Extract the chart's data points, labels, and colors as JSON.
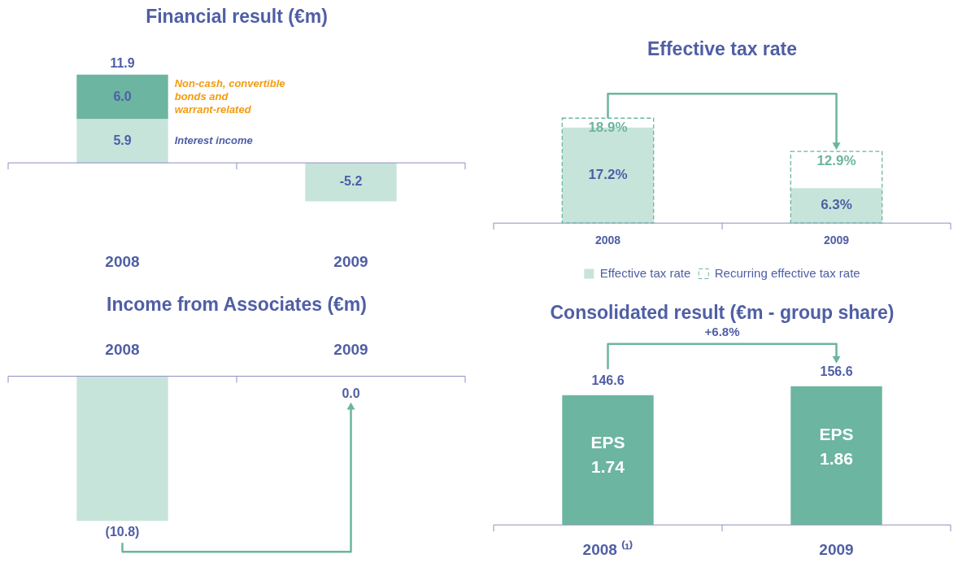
{
  "chart_data": [
    {
      "type": "bar",
      "title": "Financial result (€m)",
      "categories": [
        "2008",
        "2009"
      ],
      "stacked": true,
      "series": [
        {
          "name": "Interest income",
          "color": "#c7e4db",
          "values": [
            5.9,
            -5.2
          ],
          "value_labels": [
            "5.9",
            "-5.2"
          ]
        },
        {
          "name": "Non-cash, convertible bonds and warrant-related",
          "color": "#6cb5a0",
          "values": [
            6.0,
            null
          ],
          "value_labels": [
            "6.0",
            null
          ]
        }
      ],
      "totals": [
        "11.9",
        null
      ],
      "ref_lines": [
        {
          "axis": "y",
          "value": 0
        }
      ],
      "tick_labels": "x",
      "grid": false,
      "legend": false
    },
    {
      "type": "bar",
      "title": "Effective tax rate",
      "categories": [
        "2008",
        "2009"
      ],
      "series": [
        {
          "name": "Effective tax rate",
          "color": "#c7e4db",
          "values": [
            17.2,
            6.3
          ],
          "value_labels": [
            "17.2%",
            "6.3%"
          ]
        },
        {
          "name": "Recurring effective tax rate",
          "color": "#6cb5a0",
          "line_style": "dashed",
          "values": [
            18.9,
            12.9
          ],
          "value_labels": [
            "18.9%",
            "12.9%"
          ]
        }
      ],
      "tick_labels": "x",
      "grid": false,
      "legend": "bottom"
    },
    {
      "type": "bar",
      "title": "Income from Associates (€m)",
      "categories": [
        "2008",
        "2009"
      ],
      "values": [
        -10.8,
        0.0
      ],
      "value_labels": [
        "(10.8)",
        "0.0"
      ],
      "color": "#c7e4db",
      "tick_labels": "x",
      "grid": false,
      "legend": false
    },
    {
      "type": "bar",
      "title": "Consolidated result (€m - group share)",
      "categories": [
        "2008 ⁽¹⁾",
        "2009"
      ],
      "values": [
        146.6,
        156.6
      ],
      "data_labels": true,
      "color": "#6cb5a0",
      "tick_labels": "x",
      "grid": false,
      "legend": false,
      "annotations": [
        "EPS 1.74",
        "EPS 1.86",
        "+6.8%"
      ]
    }
  ]
}
